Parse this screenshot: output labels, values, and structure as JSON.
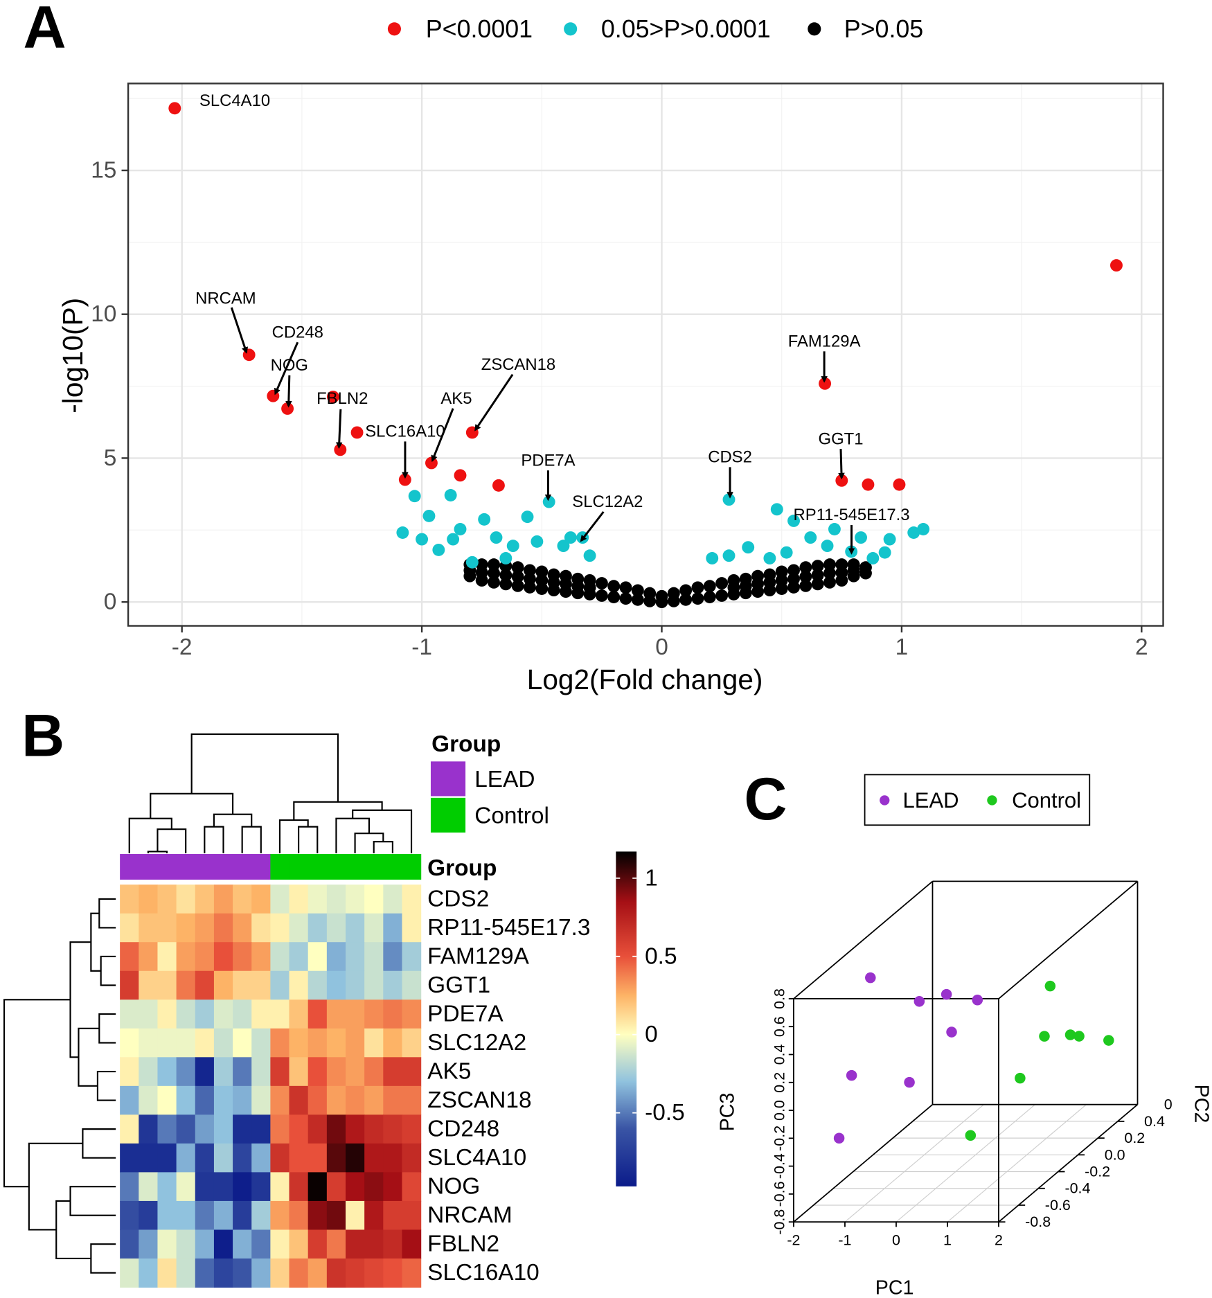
{
  "chart_data": [
    {
      "type": "volcano",
      "panel": "A",
      "x_label": "Log2(Fold change)",
      "y_label": "-log10(P)",
      "xlim": [
        -2.224,
        2.09
      ],
      "ylim": [
        -0.83,
        18.02
      ],
      "xticks": [
        -2,
        -1,
        0,
        1,
        2
      ],
      "yticks": [
        0,
        5,
        10,
        15
      ],
      "grid": true,
      "series": [
        {
          "name": "P<0.0001",
          "color": "#ee1111",
          "x": [
            -2.03,
            1.895,
            -1.72,
            -1.62,
            -1.56,
            -1.37,
            -1.34,
            -1.27,
            -1.07,
            -0.96,
            -0.84,
            -0.79,
            -0.68,
            0.68,
            0.75,
            0.86,
            0.99
          ],
          "y": [
            17.16,
            11.7,
            8.59,
            7.16,
            6.72,
            7.13,
            5.29,
            5.89,
            4.25,
            4.83,
            4.4,
            5.89,
            4.05,
            7.59,
            4.22,
            4.08,
            4.08
          ]
        },
        {
          "name": "0.05>P>0.0001",
          "color": "#14c4cc",
          "x": [
            -0.47,
            0.28,
            -0.33,
            0.79,
            -1.03,
            -0.88,
            -1.08,
            -0.97,
            -1.0,
            -0.93,
            -0.84,
            -0.74,
            -0.69,
            -0.56,
            -0.62,
            -0.52,
            -0.41,
            -0.3,
            -0.79,
            -0.65,
            -0.38,
            -0.87,
            0.48,
            1.09,
            1.05,
            0.95,
            0.93,
            0.55,
            0.62,
            0.69,
            0.83,
            0.36,
            0.28,
            0.45,
            0.52,
            0.72,
            0.88,
            0.21
          ],
          "y": [
            3.48,
            3.56,
            2.24,
            1.75,
            3.68,
            3.71,
            2.41,
            2.99,
            2.18,
            1.81,
            2.53,
            2.87,
            2.24,
            2.96,
            1.95,
            2.1,
            1.95,
            1.61,
            1.38,
            1.52,
            2.24,
            2.18,
            3.22,
            2.53,
            2.41,
            2.18,
            1.72,
            2.82,
            2.24,
            1.95,
            2.24,
            1.9,
            1.61,
            1.52,
            1.72,
            2.53,
            1.52,
            1.52
          ]
        },
        {
          "name": "P>0.05",
          "color": "#000000",
          "x": [
            -0.8,
            -0.8,
            -0.8,
            -0.75,
            -0.75,
            -0.75,
            -0.7,
            -0.7,
            -0.7,
            -0.65,
            -0.65,
            -0.65,
            -0.6,
            -0.6,
            -0.6,
            -0.55,
            -0.55,
            -0.55,
            -0.5,
            -0.5,
            -0.5,
            -0.45,
            -0.45,
            -0.45,
            -0.4,
            -0.4,
            -0.4,
            -0.35,
            -0.35,
            -0.35,
            -0.3,
            -0.3,
            -0.3,
            -0.25,
            -0.25,
            -0.2,
            -0.2,
            -0.15,
            -0.15,
            -0.1,
            -0.1,
            -0.05,
            -0.05,
            0,
            0,
            0.05,
            0.05,
            0.1,
            0.1,
            0.15,
            0.15,
            0.2,
            0.2,
            0.25,
            0.25,
            0.3,
            0.3,
            0.3,
            0.35,
            0.35,
            0.35,
            0.4,
            0.4,
            0.4,
            0.45,
            0.45,
            0.45,
            0.5,
            0.5,
            0.5,
            0.55,
            0.55,
            0.55,
            0.6,
            0.6,
            0.6,
            0.65,
            0.65,
            0.65,
            0.7,
            0.7,
            0.7,
            0.75,
            0.75,
            0.75,
            0.8,
            0.8,
            0.8,
            0.85,
            0.85
          ],
          "y": [
            0.9,
            1.1,
            1.3,
            0.75,
            1.02,
            1.3,
            0.68,
            1.0,
            1.3,
            0.62,
            0.93,
            1.25,
            0.56,
            0.88,
            1.2,
            0.51,
            0.8,
            1.1,
            0.46,
            0.75,
            1.05,
            0.41,
            0.68,
            0.95,
            0.36,
            0.63,
            0.9,
            0.31,
            0.55,
            0.8,
            0.27,
            0.5,
            0.75,
            0.22,
            0.65,
            0.17,
            0.55,
            0.12,
            0.5,
            0.08,
            0.4,
            0.03,
            0.3,
            0.0,
            0.2,
            0.03,
            0.3,
            0.08,
            0.4,
            0.12,
            0.5,
            0.17,
            0.55,
            0.22,
            0.65,
            0.27,
            0.5,
            0.75,
            0.31,
            0.55,
            0.8,
            0.36,
            0.63,
            0.9,
            0.41,
            0.68,
            0.95,
            0.46,
            0.75,
            1.05,
            0.51,
            0.8,
            1.1,
            0.56,
            0.88,
            1.2,
            0.62,
            0.93,
            1.25,
            0.68,
            1.0,
            1.3,
            0.75,
            1.02,
            1.3,
            0.9,
            1.1,
            1.3,
            1.0,
            1.2
          ]
        }
      ],
      "annotations": [
        "SLC4A10",
        "NRCAM",
        "CD248",
        "NOG",
        "FBLN2",
        "SLC16A10",
        "AK5",
        "ZSCAN18",
        "PDE7A",
        "SLC12A2",
        "CDS2",
        "FAM129A",
        "GGT1",
        "RP11-545E17.3"
      ]
    },
    {
      "type": "heatmap",
      "panel": "B",
      "group_label": "Group",
      "groups": [
        {
          "name": "LEAD",
          "color": "#9932cc"
        },
        {
          "name": "Control",
          "color": "#00cd00"
        }
      ],
      "column_groups": [
        "LEAD",
        "LEAD",
        "LEAD",
        "LEAD",
        "LEAD",
        "LEAD",
        "LEAD",
        "LEAD",
        "Control",
        "Control",
        "Control",
        "Control",
        "Control",
        "Control",
        "Control",
        "Control"
      ],
      "rows": [
        "CDS2",
        "RP11-545E17.3",
        "FAM129A",
        "GGT1",
        "PDE7A",
        "SLC12A2",
        "AK5",
        "ZSCAN18",
        "CD248",
        "SLC4A10",
        "NOG",
        "NRCAM",
        "FBLN2",
        "SLC16A10"
      ],
      "values": [
        [
          0.2,
          0.25,
          0.2,
          0.1,
          0.2,
          0.3,
          0.2,
          0.25,
          -0.1,
          0.05,
          -0.05,
          -0.1,
          -0.05,
          0.0,
          -0.1,
          0.05
        ],
        [
          0.1,
          0.2,
          0.2,
          0.25,
          0.3,
          0.4,
          0.3,
          0.1,
          0.05,
          -0.1,
          -0.25,
          -0.15,
          -0.25,
          -0.1,
          -0.35,
          0.05
        ],
        [
          0.45,
          0.3,
          0.05,
          0.3,
          0.35,
          0.5,
          0.4,
          0.3,
          -0.15,
          -0.25,
          0.0,
          -0.35,
          -0.25,
          -0.15,
          -0.45,
          -0.25
        ],
        [
          0.6,
          0.15,
          0.15,
          0.4,
          0.55,
          0.25,
          0.15,
          0.15,
          -0.25,
          0.05,
          -0.2,
          -0.3,
          -0.25,
          -0.15,
          -0.25,
          -0.15
        ],
        [
          -0.1,
          -0.1,
          0.05,
          -0.15,
          -0.25,
          -0.1,
          -0.15,
          0.05,
          0.05,
          0.2,
          0.5,
          0.3,
          0.3,
          0.35,
          0.4,
          0.35
        ],
        [
          0.0,
          -0.05,
          -0.05,
          -0.05,
          0.05,
          -0.15,
          0.0,
          -0.15,
          0.35,
          0.25,
          0.3,
          0.25,
          0.3,
          0.1,
          0.25,
          0.15
        ],
        [
          0.05,
          -0.15,
          -0.3,
          -0.45,
          -0.9,
          -0.25,
          -0.5,
          -0.15,
          0.6,
          0.2,
          0.5,
          0.35,
          0.3,
          0.4,
          0.6,
          0.6
        ],
        [
          -0.35,
          -0.1,
          0.0,
          -0.3,
          -0.55,
          -0.3,
          -0.35,
          -0.1,
          0.35,
          0.65,
          0.45,
          0.3,
          0.35,
          0.3,
          0.4,
          0.4
        ],
        [
          0.05,
          -0.8,
          -0.5,
          -0.6,
          -0.4,
          -0.3,
          -0.85,
          -0.85,
          0.4,
          0.5,
          0.7,
          0.95,
          0.8,
          0.7,
          0.65,
          0.6
        ],
        [
          -0.85,
          -0.85,
          -0.85,
          -0.35,
          -0.75,
          -0.25,
          -0.7,
          -0.35,
          0.65,
          0.5,
          0.5,
          1.0,
          1.1,
          0.8,
          0.8,
          0.7
        ],
        [
          -0.5,
          -0.1,
          -0.3,
          -0.05,
          -0.8,
          -0.8,
          -0.95,
          -0.8,
          0.05,
          0.65,
          1.15,
          0.6,
          0.85,
          0.9,
          0.85,
          0.55
        ],
        [
          -0.65,
          -0.75,
          -0.3,
          -0.3,
          -0.5,
          -0.35,
          -0.75,
          -0.25,
          0.3,
          0.4,
          0.9,
          0.95,
          0.05,
          0.8,
          0.6,
          0.6
        ],
        [
          -0.6,
          -0.4,
          -0.05,
          -0.15,
          -0.35,
          -0.95,
          -0.35,
          -0.5,
          0.05,
          0.2,
          0.6,
          0.4,
          0.75,
          0.75,
          0.7,
          0.85
        ],
        [
          -0.1,
          -0.3,
          0.1,
          -0.15,
          -0.55,
          -0.7,
          -0.6,
          -0.35,
          0.15,
          0.4,
          0.3,
          0.65,
          0.6,
          0.55,
          0.5,
          0.45
        ]
      ],
      "colorscale": [
        {
          "value": -0.97,
          "color": "#0b1b8a"
        },
        {
          "value": -0.6,
          "color": "#3a55a5"
        },
        {
          "value": -0.3,
          "color": "#90c2de"
        },
        {
          "value": 0,
          "color": "#ffffc0"
        },
        {
          "value": 0.25,
          "color": "#fdb366"
        },
        {
          "value": 0.5,
          "color": "#e8503a"
        },
        {
          "value": 0.85,
          "color": "#a50f15"
        },
        {
          "value": 1.17,
          "color": "#000000"
        }
      ],
      "colorbar_lim": [
        -0.97,
        1.17
      ],
      "colorbar_ticks": [
        1,
        0.5,
        0,
        -0.5
      ]
    },
    {
      "type": "scatter3d",
      "panel": "C",
      "x_label": "PC1",
      "y_label": "PC2",
      "z_label": "PC3",
      "xlim": [
        -2,
        2
      ],
      "ylim": [
        -0.8,
        0.6
      ],
      "zlim": [
        -0.8,
        0.8
      ],
      "xticks": [
        -2,
        -1,
        0,
        1,
        2
      ],
      "yticks": [
        -0.8,
        -0.6,
        -0.4,
        -0.2,
        {
          "value": 0,
          "label": "0.0"
        },
        0.2,
        0.4
      ],
      "clipped_label": "0",
      "zticks": [
        -0.8,
        -0.6,
        -0.4,
        -0.2,
        {
          "value": 0,
          "label": "0.0"
        },
        0.2,
        0.4,
        0.6,
        0.8
      ],
      "series": [
        {
          "name": "LEAD",
          "color": "#9932cc",
          "x": [
            -1.47,
            -0.76,
            -0.71,
            -0.35,
            -0.66,
            -1.45,
            -1.29,
            -1.5
          ],
          "y": [
            -0.3,
            0.1,
            -0.2,
            0.2,
            0.1,
            -0.5,
            0.0,
            -0.6
          ],
          "z": [
            0.65,
            0.29,
            0.42,
            0.19,
            0.02,
            0.07,
            -0.28,
            -0.32
          ]
        },
        {
          "name": "Control",
          "color": "#1ec81e",
          "x": [
            1.65,
            1.15,
            1.27,
            1.44,
            1.63,
            1.45,
            0.87
          ],
          "y": [
            -0.1,
            0.1,
            0.3,
            0.3,
            0.5,
            -0.3,
            -0.5
          ],
          "z": [
            0.47,
            -0.01,
            -0.12,
            -0.13,
            -0.28,
            -0.07,
            -0.36
          ]
        }
      ]
    }
  ]
}
